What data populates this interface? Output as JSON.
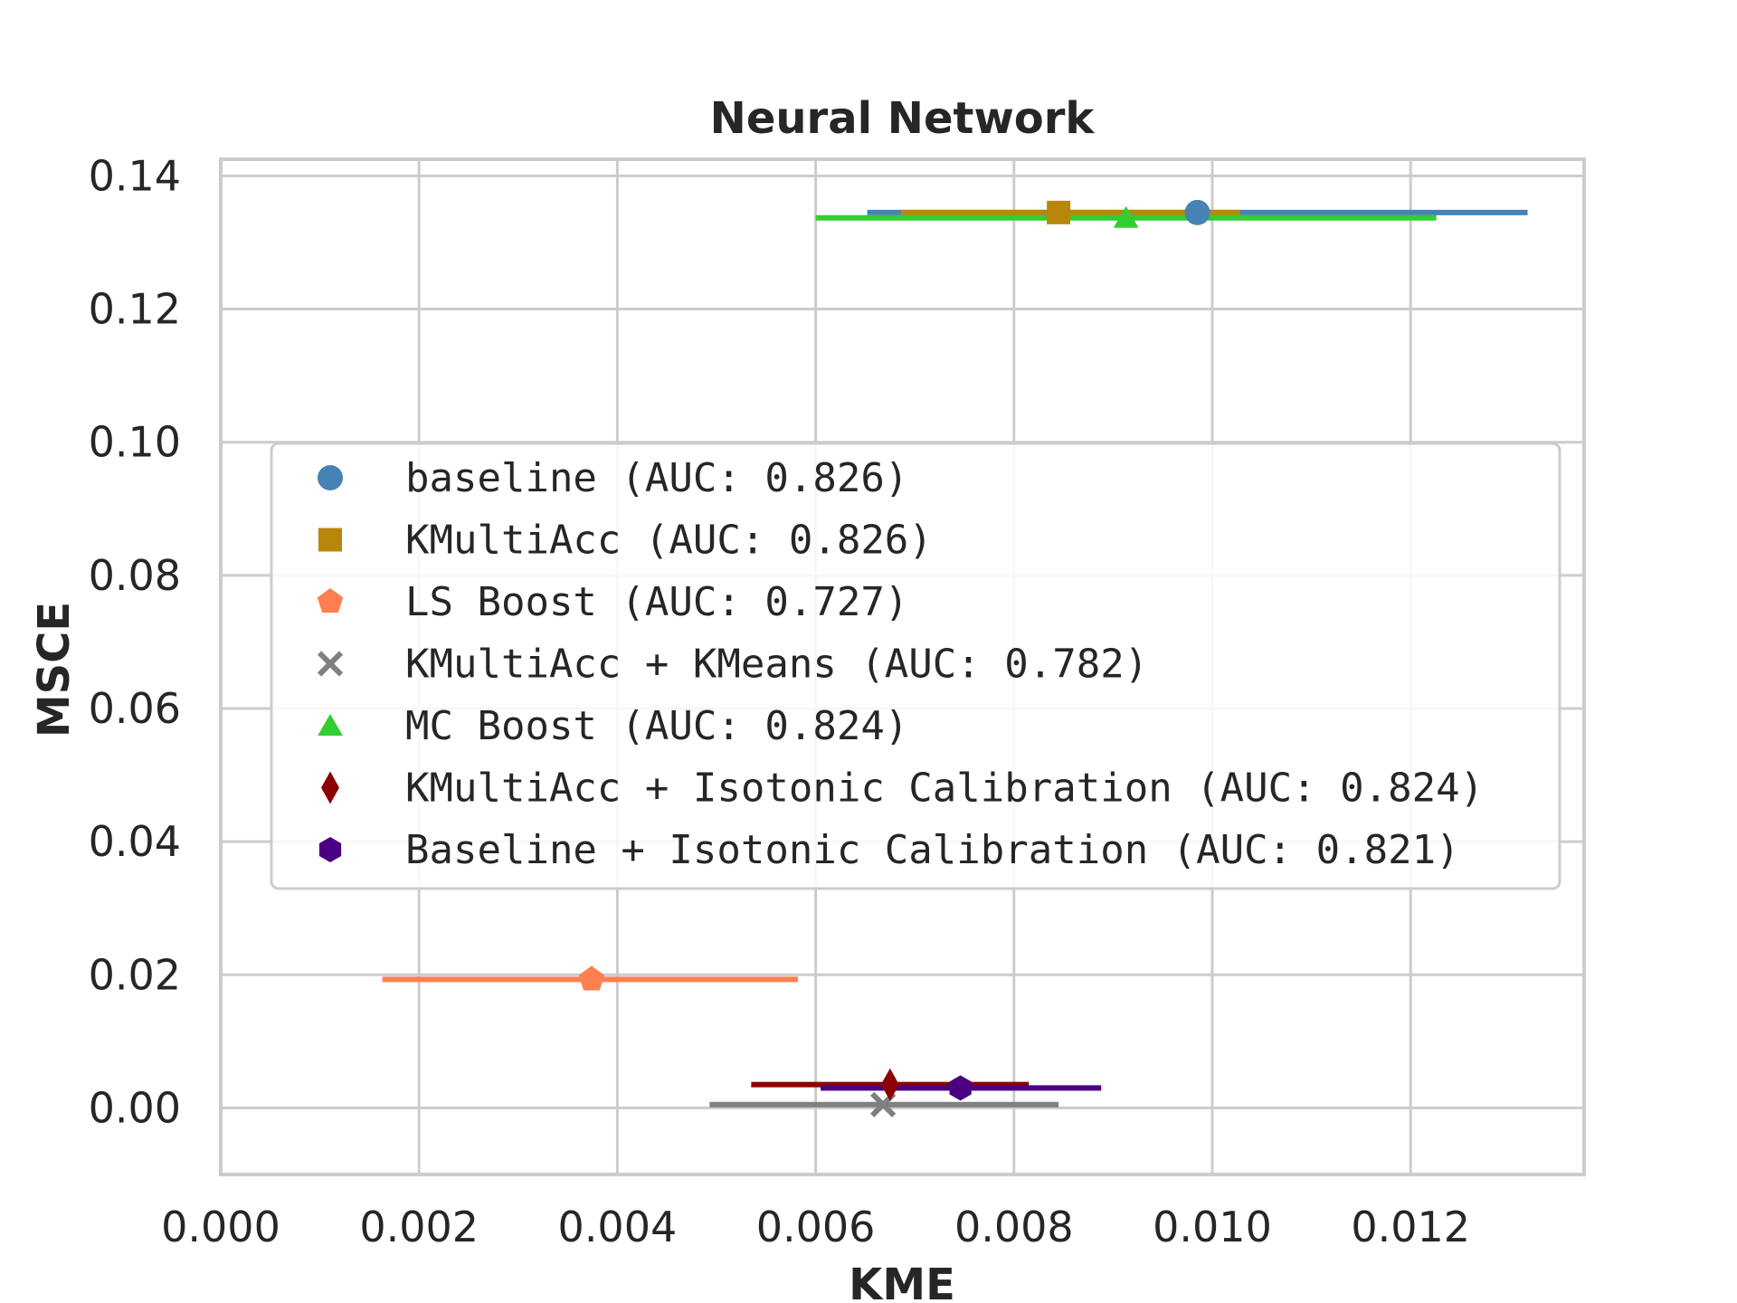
{
  "chart_data": {
    "type": "scatter",
    "title": "Neural Network",
    "xlabel": "KME",
    "ylabel": "MSCE",
    "xlim": [
      0.0,
      0.01375
    ],
    "ylim": [
      -0.01,
      0.1425
    ],
    "xticks": [
      "0.000",
      "0.002",
      "0.004",
      "0.006",
      "0.008",
      "0.010",
      "0.012"
    ],
    "xtick_values": [
      0.0,
      0.002,
      0.004,
      0.006,
      0.008,
      0.01,
      0.012
    ],
    "yticks": [
      "0.00",
      "0.02",
      "0.04",
      "0.06",
      "0.08",
      "0.10",
      "0.12",
      "0.14"
    ],
    "ytick_values": [
      0.0,
      0.02,
      0.04,
      0.06,
      0.08,
      0.1,
      0.12,
      0.14
    ],
    "grid": true,
    "legend_position": "center",
    "series": [
      {
        "name": "baseline (AUC: 0.826)",
        "marker": "circle",
        "color": "#4682b4",
        "x": 0.00985,
        "y": 0.1345,
        "xerr": [
          0.00652,
          0.01318
        ]
      },
      {
        "name": "KMultiAcc (AUC: 0.826)",
        "marker": "square",
        "color": "#b8860b",
        "x": 0.00845,
        "y": 0.1345,
        "xerr": [
          0.00686,
          0.01028
        ]
      },
      {
        "name": "LS Boost (AUC: 0.727)",
        "marker": "pentagon",
        "color": "#ff7f50",
        "x": 0.00374,
        "y": 0.0193,
        "xerr": [
          0.00163,
          0.00582
        ]
      },
      {
        "name": "KMultiAcc + KMeans (AUC: 0.782)",
        "marker": "x",
        "color": "#808080",
        "x": 0.00668,
        "y": 0.0005,
        "xerr": [
          0.00493,
          0.00845
        ]
      },
      {
        "name": "MC Boost (AUC: 0.824)",
        "marker": "triangle",
        "color": "#32cd32",
        "x": 0.00913,
        "y": 0.1337,
        "xerr": [
          0.006,
          0.01226
        ]
      },
      {
        "name": "KMultiAcc + Isotonic Calibration (AUC: 0.824)",
        "marker": "diamond",
        "color": "#8b0000",
        "x": 0.00675,
        "y": 0.0035,
        "xerr": [
          0.00535,
          0.00815
        ]
      },
      {
        "name": "Baseline + Isotonic Calibration (AUC: 0.821)",
        "marker": "hexagon",
        "color": "#4b0082",
        "x": 0.00746,
        "y": 0.003,
        "xerr": [
          0.00605,
          0.00888
        ]
      }
    ]
  }
}
